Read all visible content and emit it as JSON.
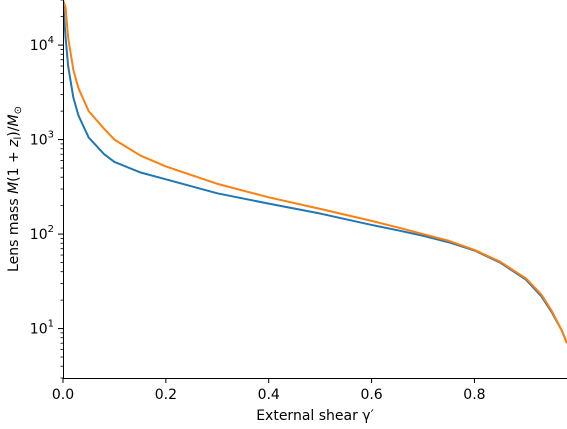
{
  "chart_data": {
    "type": "line",
    "xlabel": "External shear γ′",
    "ylabel": "Lens mass M(1 + z_l)/M_⊙",
    "xlim": [
      0.0,
      0.98
    ],
    "ylim": [
      3,
      30000
    ],
    "yscale": "log",
    "grid": false,
    "x_ticks": [
      {
        "value": 0.0,
        "label": "0.0"
      },
      {
        "value": 0.2,
        "label": "0.2"
      },
      {
        "value": 0.4,
        "label": "0.4"
      },
      {
        "value": 0.6,
        "label": "0.6"
      },
      {
        "value": 0.8,
        "label": "0.8"
      }
    ],
    "y_ticks": [
      {
        "value": 10,
        "base": "10",
        "exp": "1"
      },
      {
        "value": 100,
        "base": "10",
        "exp": "2"
      },
      {
        "value": 1000,
        "base": "10",
        "exp": "3"
      },
      {
        "value": 10000,
        "base": "10",
        "exp": "4"
      }
    ],
    "series": [
      {
        "color": "#1f77b4",
        "x": [
          0.0,
          0.005,
          0.01,
          0.02,
          0.03,
          0.05,
          0.08,
          0.1,
          0.15,
          0.2,
          0.3,
          0.4,
          0.5,
          0.6,
          0.65,
          0.7,
          0.75,
          0.8,
          0.85,
          0.9,
          0.93,
          0.95,
          0.97,
          0.98
        ],
        "y": [
          30000,
          12000,
          6000,
          2800,
          1800,
          1050,
          700,
          580,
          450,
          380,
          270,
          210,
          165,
          125,
          110,
          96,
          82,
          67,
          50,
          33,
          22,
          15,
          9.5,
          7
        ]
      },
      {
        "color": "#ff7f0e",
        "x": [
          0.0,
          0.005,
          0.01,
          0.02,
          0.03,
          0.05,
          0.08,
          0.1,
          0.15,
          0.2,
          0.3,
          0.4,
          0.5,
          0.6,
          0.65,
          0.7,
          0.75,
          0.8,
          0.85,
          0.9,
          0.93,
          0.95,
          0.97,
          0.98
        ],
        "y": [
          30000,
          25000,
          12000,
          5500,
          3500,
          2000,
          1300,
          1000,
          680,
          520,
          340,
          245,
          185,
          138,
          118,
          100,
          85,
          68,
          51,
          34,
          23,
          15.5,
          9.5,
          7
        ]
      }
    ]
  }
}
